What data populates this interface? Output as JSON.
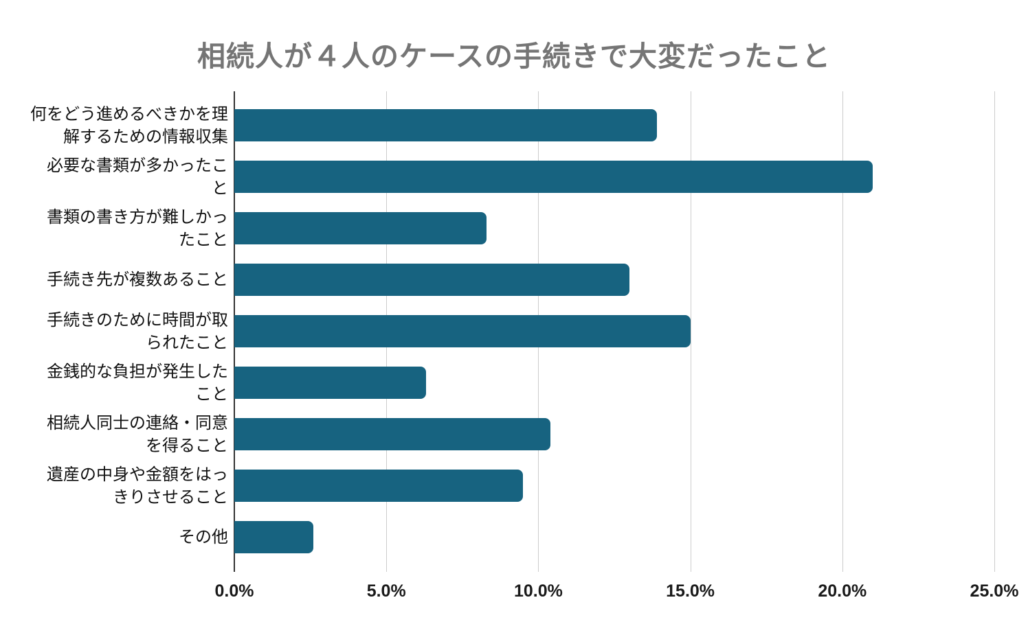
{
  "chart_data": {
    "type": "bar",
    "orientation": "horizontal",
    "title": "相続人が４人のケースの手続きで大変だったこと",
    "categories": [
      "何をどう進めるべきかを理解するための情報収集",
      "必要な書類が多かったこと",
      "書類の書き方が難しかったこと",
      "手続き先が複数あること",
      "手続きのために時間が取られたこと",
      "金銭的な負担が発生したこと",
      "相続人同士の連絡・同意を得ること",
      "遺産の中身や金額をはっきりさせること",
      "その他"
    ],
    "categories_wrapped": [
      "何をどう進めるべきかを理\n解するための情報収集",
      "必要な書類が多かったこ\nと",
      "書類の書き方が難しかっ\nたこと",
      "手続き先が複数あること",
      "手続きのために時間が取\nられたこと",
      "金銭的な負担が発生した\nこと",
      "相続人同士の連絡・同意\nを得ること",
      "遺産の中身や金額をはっ\nきりさせること",
      "その他"
    ],
    "values": [
      13.9,
      21.0,
      8.3,
      13.0,
      15.0,
      6.3,
      10.4,
      9.5,
      2.6
    ],
    "value_unit": "%",
    "xlabel": "",
    "ylabel": "",
    "xlim": [
      0,
      25
    ],
    "x_tick_labels": [
      "0.0%",
      "5.0%",
      "10.0%",
      "15.0%",
      "20.0%",
      "25.0%"
    ],
    "grid": "vertical-on",
    "legend": "none"
  },
  "colors": {
    "bar": "#176380",
    "title": "#757575",
    "gridline": "#cccccc",
    "axis_line": "#333333",
    "category_label": "#111111",
    "tick_label": "#1a1a1a",
    "background": "#ffffff"
  }
}
